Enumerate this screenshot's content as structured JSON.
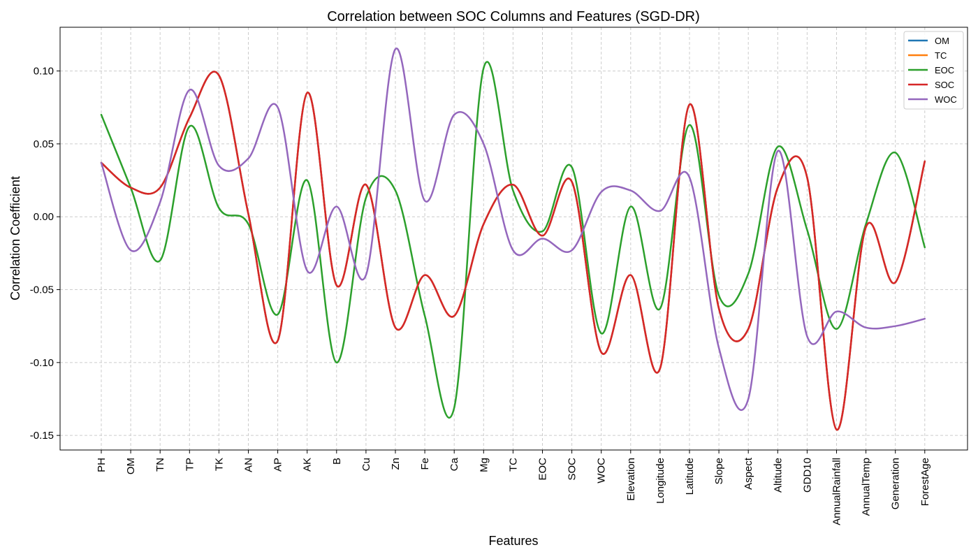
{
  "chart_data": {
    "type": "line",
    "title": "Correlation between SOC Columns and Features (SGD-DR)",
    "xlabel": "Features",
    "ylabel": "Correlation Coefficient",
    "categories": [
      "PH",
      "OM",
      "TN",
      "TP",
      "TK",
      "AN",
      "AP",
      "AK",
      "B",
      "Cu",
      "Zn",
      "Fe",
      "Ca",
      "Mg",
      "TC",
      "EOC",
      "SOC",
      "WOC",
      "Elevation",
      "Longitude",
      "Latitude",
      "Slope",
      "Aspect",
      "Altitude",
      "GDD10",
      "AnnualRainfall",
      "AnnualTemp",
      "Generation",
      "ForestAge"
    ],
    "ylim": [
      -0.16,
      0.13
    ],
    "yticks": [
      -0.15,
      -0.1,
      -0.05,
      0.0,
      0.05,
      0.1
    ],
    "ytick_labels": [
      "-0.15",
      "-0.10",
      "-0.05",
      "0.00",
      "0.05",
      "0.10"
    ],
    "grid": true,
    "legend_position": "top-right",
    "series": [
      {
        "name": "OM",
        "color": "#1f77b4",
        "values": [
          0.037,
          0.02,
          0.02,
          0.068,
          0.097,
          0.002,
          -0.085,
          0.085,
          -0.047,
          0.022,
          -0.076,
          -0.04,
          -0.068,
          -0.005,
          0.022,
          -0.013,
          0.024,
          -0.093,
          -0.04,
          -0.104,
          0.077,
          -0.063,
          -0.077,
          0.02,
          0.027,
          -0.146,
          -0.007,
          -0.045,
          0.038
        ]
      },
      {
        "name": "TC",
        "color": "#ff7f0e",
        "values": [
          0.037,
          0.02,
          0.02,
          0.068,
          0.097,
          0.002,
          -0.085,
          0.085,
          -0.047,
          0.022,
          -0.076,
          -0.04,
          -0.068,
          -0.005,
          0.022,
          -0.013,
          0.024,
          -0.093,
          -0.04,
          -0.104,
          0.077,
          -0.063,
          -0.077,
          0.02,
          0.027,
          -0.146,
          -0.007,
          -0.045,
          0.038
        ]
      },
      {
        "name": "EOC",
        "color": "#2ca02c",
        "values": [
          0.07,
          0.02,
          -0.03,
          0.062,
          0.006,
          -0.005,
          -0.067,
          0.025,
          -0.1,
          0.013,
          0.018,
          -0.068,
          -0.131,
          0.102,
          0.018,
          -0.01,
          0.034,
          -0.08,
          0.007,
          -0.063,
          0.063,
          -0.054,
          -0.039,
          0.048,
          -0.009,
          -0.077,
          -0.005,
          0.044,
          -0.021
        ]
      },
      {
        "name": "SOC",
        "color": "#d62728",
        "values": [
          0.037,
          0.02,
          0.02,
          0.068,
          0.097,
          0.002,
          -0.085,
          0.085,
          -0.047,
          0.022,
          -0.076,
          -0.04,
          -0.068,
          -0.005,
          0.022,
          -0.013,
          0.024,
          -0.093,
          -0.04,
          -0.104,
          0.077,
          -0.063,
          -0.077,
          0.02,
          0.027,
          -0.146,
          -0.007,
          -0.045,
          0.038
        ]
      },
      {
        "name": "WOC",
        "color": "#9467bd",
        "values": [
          0.037,
          -0.023,
          0.01,
          0.087,
          0.035,
          0.04,
          0.075,
          -0.037,
          0.007,
          -0.04,
          0.115,
          0.011,
          0.07,
          0.05,
          -0.023,
          -0.015,
          -0.023,
          0.017,
          0.018,
          0.004,
          0.027,
          -0.09,
          -0.125,
          0.045,
          -0.082,
          -0.065,
          -0.076,
          -0.075,
          -0.07
        ]
      }
    ]
  }
}
